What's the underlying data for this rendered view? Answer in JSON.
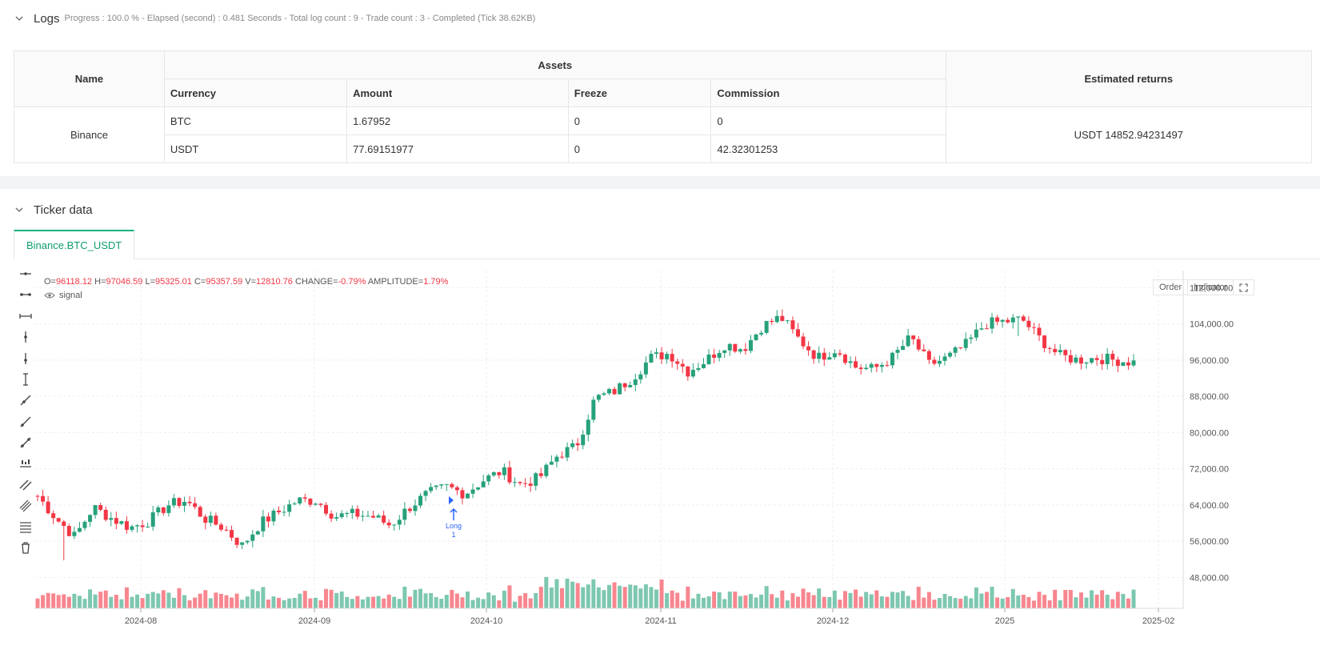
{
  "logs": {
    "title": "Logs",
    "status": "Progress : 100.0 % - Elapsed (second) : 0.481  Seconds - Total log count : 9 - Trade count : 3 - Completed (Tick 38.62KB)"
  },
  "assets_table": {
    "header_name": "Name",
    "header_assets": "Assets",
    "header_returns": "Estimated returns",
    "columns": [
      "Currency",
      "Amount",
      "Freeze",
      "Commission"
    ],
    "exchange": "Binance",
    "rows": [
      {
        "currency": "BTC",
        "amount": "1.67952",
        "freeze": "0",
        "commission": "0"
      },
      {
        "currency": "USDT",
        "amount": "77.69151977",
        "freeze": "0",
        "commission": "42.32301253"
      }
    ],
    "estimated_returns": "USDT 14852.94231497"
  },
  "ticker": {
    "title": "Ticker data",
    "tab": "Binance.BTC_USDT"
  },
  "chart_header": {
    "o_label": "O=",
    "o": "96118.12",
    "h_label": "H=",
    "h": "97046.59",
    "l_label": "L=",
    "l": "95325.01",
    "c_label": "C=",
    "c": "95357.59",
    "v_label": "V=",
    "v": "12810.76",
    "change_label": "CHANGE=",
    "change": "-0.79%",
    "amp_label": "AMPLITUDE=",
    "amp": "1.79%",
    "signal": "signal"
  },
  "chart_buttons": {
    "order": "Order",
    "indicator": "Indicator"
  },
  "colors": {
    "up": "#26a17b",
    "down": "#f23645",
    "accent": "#14b47a",
    "marker": "#2962ff"
  },
  "chart_data": {
    "type": "candlestick",
    "y_ticks": [
      "112,000.00",
      "104,000.00",
      "96,000.00",
      "88,000.00",
      "80,000.00",
      "72,000.00",
      "64,000.00",
      "56,000.00",
      "48,000.00"
    ],
    "y_range": [
      44000,
      114000
    ],
    "x_ticks": [
      "2024-08",
      "2024-09",
      "2024-10",
      "2024-11",
      "2024-12",
      "2025",
      "2025-02"
    ],
    "anchors": [
      [
        66000,
        66000
      ],
      [
        61500,
        61000
      ],
      [
        58000,
        57000
      ],
      [
        61500,
        63500
      ],
      [
        62000,
        61000
      ],
      [
        59500,
        59000
      ],
      [
        60000,
        60500
      ],
      [
        61500,
        64000
      ],
      [
        64500,
        65000
      ],
      [
        60000,
        61000
      ],
      [
        59500,
        59000
      ],
      [
        56000,
        55000
      ],
      [
        57500,
        60000
      ],
      [
        61000,
        62500
      ],
      [
        63500,
        65000
      ],
      [
        65500,
        65000
      ],
      [
        62000,
        61500
      ],
      [
        62500,
        62000
      ],
      [
        60500,
        61500
      ],
      [
        60000,
        59500
      ],
      [
        60000,
        63500
      ],
      [
        65000,
        66500
      ],
      [
        67500,
        68000
      ],
      [
        67000,
        66500
      ],
      [
        67500,
        69500
      ],
      [
        72000,
        71500
      ],
      [
        69000,
        68500
      ],
      [
        69000,
        70000
      ],
      [
        73000,
        75000
      ],
      [
        75500,
        77000
      ],
      [
        83000,
        87500
      ],
      [
        90000,
        89000
      ],
      [
        91500,
        92000
      ],
      [
        95000,
        96500
      ],
      [
        98000,
        97500
      ],
      [
        94000,
        93500
      ],
      [
        96000,
        96000
      ],
      [
        101500,
        99500
      ],
      [
        96500,
        98500
      ],
      [
        99500,
        103500
      ],
      [
        106000,
        105500
      ],
      [
        101500,
        100500
      ],
      [
        97000,
        96500
      ],
      [
        97500,
        98500
      ],
      [
        95000,
        94500
      ],
      [
        93000,
        94000
      ],
      [
        95500,
        96500
      ],
      [
        98000,
        101000
      ],
      [
        96500,
        95000
      ],
      [
        95500,
        96500
      ],
      [
        97000,
        99500
      ],
      [
        102500,
        104000
      ],
      [
        103000,
        104500
      ],
      [
        106000,
        105000
      ],
      [
        102000,
        100500
      ],
      [
        99000,
        97000
      ],
      [
        96500,
        96000
      ],
      [
        97000,
        96500
      ],
      [
        97000,
        96000
      ],
      [
        96500,
        95500
      ]
    ],
    "up_color": "#26a17b",
    "down_color": "#f23645",
    "marker": {
      "label": "Long",
      "sub": "1",
      "index": 55
    }
  }
}
